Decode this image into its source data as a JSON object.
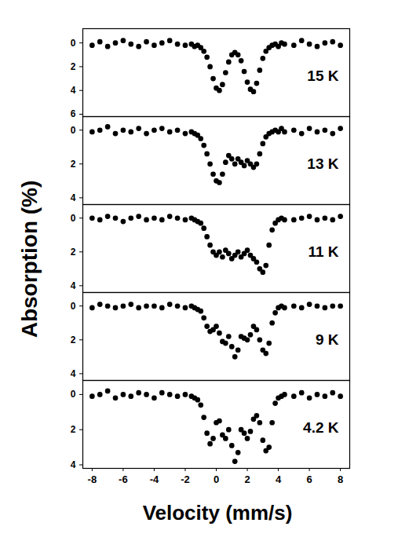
{
  "chart_data": {
    "type": "scatter",
    "xlabel": "Velocity (mm/s)",
    "ylabel": "Absorption (%)",
    "xlim": [
      -8.6,
      8.6
    ],
    "xticks": [
      -8,
      -6,
      -4,
      -2,
      0,
      2,
      4,
      6,
      8
    ],
    "marker": "circle",
    "color": "#000000",
    "x": [
      -8,
      -7.5,
      -7,
      -6.5,
      -6,
      -5.5,
      -5,
      -4.5,
      -4,
      -3.5,
      -3,
      -2.5,
      -2,
      -1.6,
      -1.4,
      -1.2,
      -1,
      -0.8,
      -0.6,
      -0.4,
      -0.2,
      0,
      0.2,
      0.4,
      0.6,
      0.8,
      1,
      1.2,
      1.4,
      1.6,
      1.8,
      2,
      2.2,
      2.4,
      2.6,
      2.8,
      3,
      3.2,
      3.4,
      3.6,
      3.8,
      4,
      4.2,
      4.4,
      5,
      5.5,
      6,
      6.5,
      7,
      7.5,
      8
    ],
    "panels": [
      {
        "title": "15 K",
        "ylim": [
          -1.2,
          6.2
        ],
        "yticks": [
          0,
          2,
          4,
          6
        ],
        "values": [
          0.2,
          -0.1,
          0.3,
          0,
          -0.2,
          0.1,
          0.3,
          -0.1,
          0.2,
          0,
          -0.2,
          0.1,
          0.2,
          0.1,
          0.3,
          0.2,
          0.4,
          0.7,
          1.2,
          2.0,
          3.0,
          3.8,
          4.0,
          3.5,
          2.5,
          1.6,
          1.0,
          0.8,
          1.0,
          1.5,
          2.4,
          3.3,
          3.9,
          4.1,
          3.4,
          2.3,
          1.3,
          0.7,
          0.4,
          0.2,
          0.1,
          0.3,
          0,
          0.1,
          0.2,
          -0.2,
          0.1,
          0.3,
          0,
          -0.1,
          0.2
        ]
      },
      {
        "title": "13 K",
        "ylim": [
          -0.8,
          4.4
        ],
        "yticks": [
          0,
          2,
          4
        ],
        "values": [
          0.1,
          0,
          -0.2,
          0.2,
          0,
          0.1,
          -0.1,
          0.2,
          0,
          -0.1,
          0.1,
          0,
          0.2,
          0.1,
          0.2,
          0.3,
          0.5,
          0.9,
          1.4,
          2.0,
          2.6,
          3.0,
          3.1,
          2.6,
          1.9,
          1.5,
          1.7,
          2.0,
          1.7,
          1.9,
          2.1,
          1.8,
          2.0,
          2.2,
          2.0,
          1.4,
          0.8,
          0.4,
          0.2,
          0.1,
          0,
          0.1,
          -0.1,
          0.1,
          0,
          0.2,
          -0.1,
          0.1,
          0,
          0.2,
          -0.1
        ]
      },
      {
        "title": "11 K",
        "ylim": [
          -0.8,
          4.4
        ],
        "yticks": [
          0,
          2,
          4
        ],
        "values": [
          0,
          0.1,
          -0.1,
          0,
          0.2,
          0,
          -0.1,
          0.1,
          0,
          0.1,
          -0.1,
          0,
          0.1,
          0,
          0.1,
          0.2,
          0.3,
          0.6,
          1.1,
          1.6,
          2.0,
          2.2,
          2.0,
          2.3,
          1.9,
          2.1,
          2.4,
          2.2,
          2.0,
          2.3,
          2.1,
          1.9,
          2.2,
          2.4,
          2.6,
          3.0,
          3.2,
          2.8,
          1.6,
          0.7,
          0.3,
          0.1,
          0,
          0.1,
          0.1,
          0,
          -0.1,
          0.1,
          0,
          0.1,
          -0.1
        ]
      },
      {
        "title": "9 K",
        "ylim": [
          -0.8,
          4.4
        ],
        "yticks": [
          0,
          2,
          4
        ],
        "values": [
          0.1,
          -0.1,
          0,
          0.1,
          0,
          -0.1,
          0.1,
          0,
          0,
          0.1,
          -0.1,
          0,
          0.1,
          0,
          0.1,
          0.2,
          0.3,
          0.7,
          1.2,
          1.5,
          1.4,
          1.2,
          1.6,
          2.1,
          2.2,
          1.8,
          2.4,
          3.0,
          2.6,
          1.8,
          1.9,
          2.0,
          1.7,
          1.2,
          1.4,
          2.0,
          2.6,
          2.8,
          2.2,
          1.0,
          0.4,
          0.1,
          0,
          0.1,
          0,
          0.1,
          -0.1,
          0,
          0.1,
          0,
          0
        ]
      },
      {
        "title": "4.2 K",
        "ylim": [
          -0.8,
          4.2
        ],
        "yticks": [
          0,
          2,
          4
        ],
        "values": [
          0.1,
          0,
          -0.2,
          0.2,
          0,
          0.1,
          -0.1,
          0,
          0.2,
          -0.1,
          0,
          0.1,
          0,
          0.1,
          0.2,
          0.3,
          0.6,
          1.3,
          2.2,
          2.8,
          2.5,
          1.6,
          1.5,
          2.3,
          2.5,
          2.0,
          2.9,
          3.8,
          3.3,
          2.0,
          2.2,
          2.5,
          2.1,
          1.4,
          1.2,
          1.6,
          2.6,
          3.2,
          3.0,
          1.6,
          0.5,
          0.2,
          0.1,
          0,
          0.1,
          -0.1,
          0.2,
          0,
          0.1,
          -0.1,
          0.1
        ]
      }
    ]
  }
}
